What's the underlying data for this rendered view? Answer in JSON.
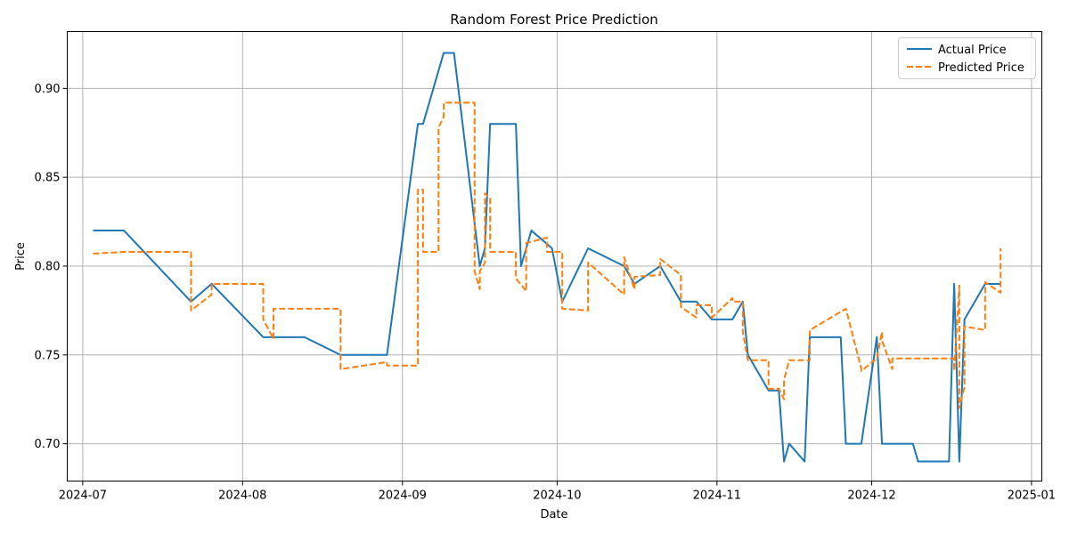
{
  "chart_data": {
    "type": "line",
    "title": "Random Forest Price Prediction",
    "xlabel": "Date",
    "ylabel": "Price",
    "xlim": [
      "2024-06-28",
      "2025-01-03"
    ],
    "ylim": [
      0.679,
      0.932
    ],
    "grid": true,
    "legend_position": "top-right",
    "x_ticks": [
      "2024-07-01",
      "2024-08-01",
      "2024-09-01",
      "2024-10-01",
      "2024-11-01",
      "2024-12-01",
      "2025-01-01"
    ],
    "x_tick_labels": [
      "2024-07",
      "2024-08",
      "2024-09",
      "2024-10",
      "2024-11",
      "2024-12",
      "2025-01"
    ],
    "y_ticks": [
      0.7,
      0.75,
      0.8,
      0.85,
      0.9
    ],
    "y_tick_labels": [
      "0.70",
      "0.75",
      "0.80",
      "0.85",
      "0.90"
    ],
    "series": [
      {
        "name": "Actual Price",
        "color": "#1f77b4",
        "style": "solid",
        "x": [
          "2024-07-03",
          "2024-07-09",
          "2024-07-22",
          "2024-07-26",
          "2024-08-05",
          "2024-08-13",
          "2024-08-20",
          "2024-08-29",
          "2024-09-04",
          "2024-09-05",
          "2024-09-09",
          "2024-09-11",
          "2024-09-16",
          "2024-09-17",
          "2024-09-18",
          "2024-09-23",
          "2024-09-24",
          "2024-09-26",
          "2024-09-30",
          "2024-10-02",
          "2024-10-07",
          "2024-10-14",
          "2024-10-16",
          "2024-10-21",
          "2024-10-25",
          "2024-10-28",
          "2024-10-31",
          "2024-11-04",
          "2024-11-06",
          "2024-11-07",
          "2024-11-11",
          "2024-11-13",
          "2024-11-14",
          "2024-11-15",
          "2024-11-18",
          "2024-11-19",
          "2024-11-25",
          "2024-11-26",
          "2024-11-29",
          "2024-12-02",
          "2024-12-03",
          "2024-12-09",
          "2024-12-10",
          "2024-12-16",
          "2024-12-17",
          "2024-12-18",
          "2024-12-19",
          "2024-12-23",
          "2024-12-26"
        ],
        "values": [
          0.82,
          0.82,
          0.78,
          0.79,
          0.76,
          0.76,
          0.75,
          0.75,
          0.88,
          0.88,
          0.92,
          0.92,
          0.8,
          0.81,
          0.88,
          0.88,
          0.8,
          0.82,
          0.81,
          0.78,
          0.81,
          0.8,
          0.79,
          0.8,
          0.78,
          0.78,
          0.77,
          0.77,
          0.78,
          0.75,
          0.73,
          0.73,
          0.69,
          0.7,
          0.69,
          0.76,
          0.76,
          0.7,
          0.7,
          0.76,
          0.7,
          0.7,
          0.69,
          0.69,
          0.79,
          0.69,
          0.77,
          0.79,
          0.79
        ]
      },
      {
        "name": "Predicted Price",
        "color": "#ff7f0e",
        "style": "dashed",
        "x": [
          "2024-07-03",
          "2024-07-09",
          "2024-07-22",
          "2024-07-22",
          "2024-07-26",
          "2024-07-26",
          "2024-08-05",
          "2024-08-05",
          "2024-08-07",
          "2024-08-07",
          "2024-08-20",
          "2024-08-20",
          "2024-08-29",
          "2024-08-29",
          "2024-09-04",
          "2024-09-04",
          "2024-09-05",
          "2024-09-05",
          "2024-09-08",
          "2024-09-08",
          "2024-09-09",
          "2024-09-09",
          "2024-09-15",
          "2024-09-15",
          "2024-09-16",
          "2024-09-16",
          "2024-09-17",
          "2024-09-17",
          "2024-09-18",
          "2024-09-18",
          "2024-09-23",
          "2024-09-23",
          "2024-09-25",
          "2024-09-25",
          "2024-09-29",
          "2024-09-29",
          "2024-10-02",
          "2024-10-02",
          "2024-10-07",
          "2024-10-07",
          "2024-10-14",
          "2024-10-14",
          "2024-10-16",
          "2024-10-16",
          "2024-10-21",
          "2024-10-21",
          "2024-10-25",
          "2024-10-25",
          "2024-10-28",
          "2024-10-28",
          "2024-10-31",
          "2024-10-31",
          "2024-11-04",
          "2024-11-04",
          "2024-11-06",
          "2024-11-06",
          "2024-11-07",
          "2024-11-07",
          "2024-11-11",
          "2024-11-11",
          "2024-11-13",
          "2024-11-13",
          "2024-11-14",
          "2024-11-14",
          "2024-11-15",
          "2024-11-15",
          "2024-11-19",
          "2024-11-19",
          "2024-11-26",
          "2024-11-26",
          "2024-11-29",
          "2024-11-29",
          "2024-12-02",
          "2024-12-02",
          "2024-12-03",
          "2024-12-03",
          "2024-12-05",
          "2024-12-05",
          "2024-12-17",
          "2024-12-17",
          "2024-12-18",
          "2024-12-18",
          "2024-12-19",
          "2024-12-19",
          "2024-12-23",
          "2024-12-23",
          "2024-12-26",
          "2024-12-26"
        ],
        "values": [
          0.807,
          0.808,
          0.808,
          0.775,
          0.784,
          0.79,
          0.79,
          0.77,
          0.759,
          0.776,
          0.776,
          0.742,
          0.746,
          0.744,
          0.744,
          0.843,
          0.843,
          0.808,
          0.808,
          0.878,
          0.884,
          0.892,
          0.892,
          0.797,
          0.787,
          0.797,
          0.802,
          0.841,
          0.838,
          0.808,
          0.808,
          0.793,
          0.786,
          0.813,
          0.816,
          0.808,
          0.808,
          0.776,
          0.775,
          0.802,
          0.784,
          0.805,
          0.787,
          0.794,
          0.795,
          0.804,
          0.795,
          0.777,
          0.771,
          0.778,
          0.778,
          0.771,
          0.782,
          0.78,
          0.78,
          0.763,
          0.747,
          0.747,
          0.747,
          0.731,
          0.731,
          0.731,
          0.725,
          0.736,
          0.747,
          0.747,
          0.747,
          0.764,
          0.776,
          0.776,
          0.742,
          0.741,
          0.748,
          0.748,
          0.763,
          0.758,
          0.742,
          0.748,
          0.748,
          0.741,
          0.789,
          0.72,
          0.732,
          0.766,
          0.764,
          0.791,
          0.785,
          0.81
        ]
      }
    ]
  }
}
